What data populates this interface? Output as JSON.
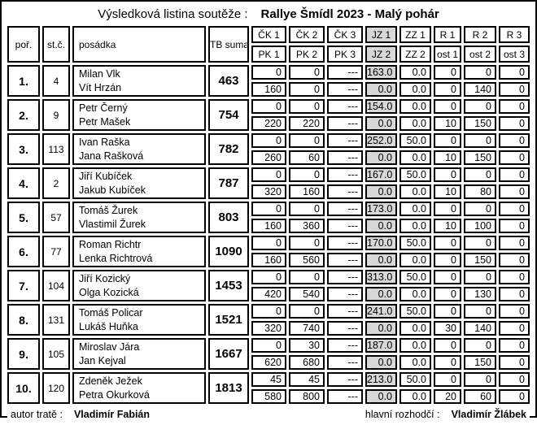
{
  "title": {
    "label": "Výsledková listina soutěže :",
    "event": "Rallye Šmídl 2023 - Malý pohár"
  },
  "columns": {
    "rank": "poř.",
    "start_number": "st.č.",
    "crew": "posádka",
    "total": "TB suma",
    "top": [
      "ČK 1",
      "ČK 2",
      "ČK 3",
      "JZ 1",
      "ZZ 1",
      "R 1",
      "R 2",
      "R 3"
    ],
    "bottom": [
      "PK 1",
      "PK 2",
      "PK 3",
      "JZ 2",
      "ZZ 2",
      "ost 1",
      "ost 2",
      "ost 3"
    ],
    "highlight_index": 3
  },
  "rows": [
    {
      "rank": "1.",
      "start_number": "4",
      "driver": "Milan Vlk",
      "codriver": "Vít Hrzán",
      "total": "463",
      "top": [
        "0",
        "0",
        "---",
        "163.0",
        "0.0",
        "0",
        "0",
        "0"
      ],
      "bottom": [
        "160",
        "0",
        "---",
        "0.0",
        "0.0",
        "0",
        "140",
        "0"
      ]
    },
    {
      "rank": "2.",
      "start_number": "9",
      "driver": "Petr Černý",
      "codriver": "Petr Mašek",
      "total": "754",
      "top": [
        "0",
        "0",
        "---",
        "154.0",
        "0.0",
        "0",
        "0",
        "0"
      ],
      "bottom": [
        "220",
        "220",
        "---",
        "0.0",
        "0.0",
        "10",
        "150",
        "0"
      ]
    },
    {
      "rank": "3.",
      "start_number": "113",
      "driver": "Ivan Raška",
      "codriver": "Jana Rašková",
      "total": "782",
      "top": [
        "0",
        "0",
        "---",
        "252.0",
        "50.0",
        "0",
        "0",
        "0"
      ],
      "bottom": [
        "260",
        "60",
        "---",
        "0.0",
        "0.0",
        "10",
        "150",
        "0"
      ]
    },
    {
      "rank": "4.",
      "start_number": "2",
      "driver": "Jiří Kubíček",
      "codriver": "Jakub Kubíček",
      "total": "787",
      "top": [
        "0",
        "0",
        "---",
        "167.0",
        "50.0",
        "0",
        "0",
        "0"
      ],
      "bottom": [
        "320",
        "160",
        "---",
        "0.0",
        "0.0",
        "10",
        "80",
        "0"
      ]
    },
    {
      "rank": "5.",
      "start_number": "57",
      "driver": "Tomáš Žurek",
      "codriver": "Vlastimil Žurek",
      "total": "803",
      "top": [
        "0",
        "0",
        "---",
        "173.0",
        "0.0",
        "0",
        "0",
        "0"
      ],
      "bottom": [
        "160",
        "360",
        "---",
        "0.0",
        "0.0",
        "10",
        "100",
        "0"
      ]
    },
    {
      "rank": "6.",
      "start_number": "77",
      "driver": "Roman Richtr",
      "codriver": "Lenka Richtrová",
      "total": "1090",
      "top": [
        "0",
        "0",
        "---",
        "170.0",
        "50.0",
        "0",
        "0",
        "0"
      ],
      "bottom": [
        "160",
        "560",
        "---",
        "0.0",
        "0.0",
        "0",
        "150",
        "0"
      ]
    },
    {
      "rank": "7.",
      "start_number": "104",
      "driver": "Jiří Kozický",
      "codriver": "Olga Kozická",
      "total": "1453",
      "top": [
        "0",
        "0",
        "---",
        "313.0",
        "50.0",
        "0",
        "0",
        "0"
      ],
      "bottom": [
        "420",
        "540",
        "---",
        "0.0",
        "0.0",
        "0",
        "130",
        "0"
      ]
    },
    {
      "rank": "8.",
      "start_number": "131",
      "driver": "Tomáš Policar",
      "codriver": "Lukáš Huňka",
      "total": "1521",
      "top": [
        "0",
        "0",
        "---",
        "241.0",
        "50.0",
        "0",
        "0",
        "0"
      ],
      "bottom": [
        "320",
        "740",
        "---",
        "0.0",
        "0.0",
        "30",
        "140",
        "0"
      ]
    },
    {
      "rank": "9.",
      "start_number": "105",
      "driver": "Miroslav Jára",
      "codriver": "Jan Kejval",
      "total": "1667",
      "top": [
        "0",
        "30",
        "---",
        "187.0",
        "0.0",
        "0",
        "0",
        "0"
      ],
      "bottom": [
        "620",
        "680",
        "---",
        "0.0",
        "0.0",
        "0",
        "150",
        "0"
      ]
    },
    {
      "rank": "10.",
      "start_number": "120",
      "driver": "Zdeněk Ježek",
      "codriver": "Petra Okurková",
      "total": "1813",
      "top": [
        "45",
        "45",
        "---",
        "213.0",
        "50.0",
        "0",
        "0",
        "0"
      ],
      "bottom": [
        "580",
        "800",
        "---",
        "0.0",
        "0.0",
        "20",
        "60",
        "0"
      ]
    }
  ],
  "footer": {
    "author_label": "autor tratě :",
    "author": "Vladimír Fabián",
    "referee_label": "hlavní rozhodčí :",
    "referee": "Vladimír Žlábek"
  },
  "colors": {
    "highlight": "#d8d8d8",
    "border": "#000000"
  }
}
